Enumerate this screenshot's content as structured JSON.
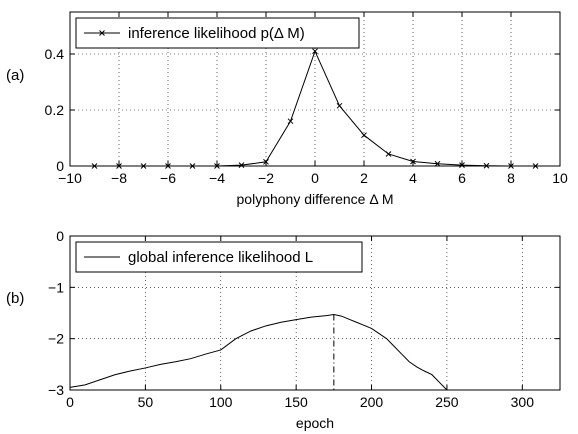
{
  "chart_data": [
    {
      "type": "line",
      "panel_label": "(a)",
      "xlabel": "polyphony difference Δ M",
      "ylabel": "",
      "xlim": [
        -10,
        10
      ],
      "ylim": [
        0,
        0.55
      ],
      "xticks": [
        -10,
        -8,
        -6,
        -4,
        -2,
        0,
        2,
        4,
        6,
        8,
        10
      ],
      "xtick_labels": [
        "−10",
        "−8",
        "−6",
        "−4",
        "−2",
        "0",
        "2",
        "4",
        "6",
        "8",
        "10"
      ],
      "yticks": [
        0,
        0.2,
        0.4
      ],
      "ytick_labels": [
        "0",
        "0.2",
        "0.4"
      ],
      "grid": true,
      "legend": "top-left",
      "series": [
        {
          "name": "inference likelihood p(Δ M)",
          "marker": "x",
          "x": [
            -9,
            -8,
            -7,
            -6,
            -5,
            -4,
            -3,
            -2,
            -1,
            0,
            1,
            2,
            3,
            4,
            5,
            6,
            7,
            8,
            9
          ],
          "y": [
            0,
            0,
            0,
            0,
            0,
            0,
            0.003,
            0.015,
            0.16,
            0.41,
            0.215,
            0.11,
            0.043,
            0.016,
            0.008,
            0.003,
            0.001,
            0,
            0
          ]
        }
      ]
    },
    {
      "type": "line",
      "panel_label": "(b)",
      "xlabel": "epoch",
      "ylabel": "",
      "xlim": [
        0,
        325
      ],
      "ylim": [
        -3,
        0
      ],
      "xticks": [
        0,
        50,
        100,
        150,
        200,
        250,
        300
      ],
      "xtick_labels": [
        "0",
        "50",
        "100",
        "150",
        "200",
        "250",
        "300"
      ],
      "yticks": [
        -3,
        -2,
        -1,
        0
      ],
      "ytick_labels": [
        "−3",
        "−2",
        "−1",
        "0"
      ],
      "grid": true,
      "legend": "top-left",
      "vline": {
        "x": 175,
        "style": "dash-dot"
      },
      "series": [
        {
          "name": "global inference likelihood L",
          "x": [
            0,
            10,
            20,
            30,
            40,
            50,
            60,
            70,
            80,
            90,
            100,
            110,
            120,
            130,
            140,
            150,
            160,
            170,
            175,
            180,
            185,
            190,
            195,
            200,
            205,
            210,
            215,
            220,
            225,
            230,
            235,
            240,
            245,
            250
          ],
          "y": [
            -2.95,
            -2.9,
            -2.8,
            -2.7,
            -2.63,
            -2.57,
            -2.5,
            -2.45,
            -2.39,
            -2.3,
            -2.22,
            -2.0,
            -1.85,
            -1.75,
            -1.68,
            -1.63,
            -1.58,
            -1.55,
            -1.53,
            -1.56,
            -1.62,
            -1.68,
            -1.74,
            -1.8,
            -1.9,
            -2.0,
            -2.15,
            -2.3,
            -2.45,
            -2.55,
            -2.63,
            -2.7,
            -2.85,
            -3.0
          ]
        }
      ]
    }
  ]
}
